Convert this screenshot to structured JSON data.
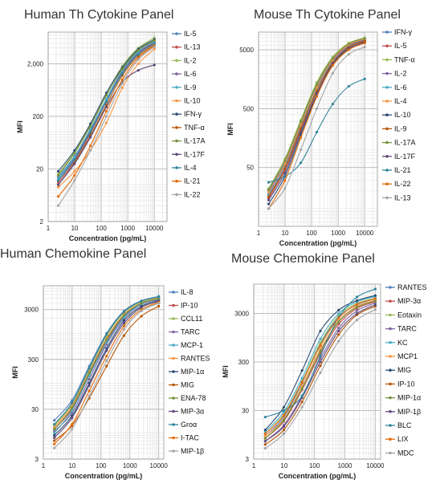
{
  "chart_data": [
    {
      "type": "line",
      "title": "Human Th Cytokine Panel",
      "xlabel": "Concentration (pg/mL)",
      "ylabel": "MFI",
      "xscale": "log",
      "yscale": "log",
      "xlim": [
        1,
        30000
      ],
      "ylim": [
        2,
        8000
      ],
      "xticks": [
        1,
        10,
        100,
        1000,
        10000
      ],
      "xtick_labels": [
        "1",
        "10",
        "100",
        "1000",
        "10000"
      ],
      "yticks": [
        2,
        20,
        200,
        2000
      ],
      "ytick_labels": [
        "2",
        "20",
        "200",
        "2,000"
      ],
      "grid": true,
      "legend": "right",
      "x": [
        2.4,
        9.8,
        39,
        156,
        625,
        2500,
        10000
      ],
      "series": [
        {
          "name": "IL-5",
          "color": "#4f81bd",
          "values": [
            14,
            35,
            110,
            420,
            1450,
            3300,
            5400
          ]
        },
        {
          "name": "IL-13",
          "color": "#c0504d",
          "values": [
            11,
            28,
            95,
            380,
            1350,
            3100,
            5100
          ]
        },
        {
          "name": "IL-2",
          "color": "#9bbb59",
          "values": [
            16,
            42,
            140,
            550,
            1800,
            4000,
            6200
          ]
        },
        {
          "name": "IL-6",
          "color": "#8064a2",
          "values": [
            12,
            32,
            105,
            400,
            1400,
            3200,
            5200
          ]
        },
        {
          "name": "IL-9",
          "color": "#4bacc6",
          "values": [
            13,
            34,
            115,
            430,
            1500,
            3400,
            5300
          ]
        },
        {
          "name": "IL-10",
          "color": "#f79646",
          "values": [
            9,
            18,
            45,
            150,
            700,
            2000,
            3800
          ]
        },
        {
          "name": "IFN-γ",
          "color": "#2c4d75",
          "values": [
            18,
            45,
            145,
            560,
            1700,
            3800,
            5800
          ]
        },
        {
          "name": "TNF-α",
          "color": "#b65708",
          "values": [
            10,
            26,
            85,
            330,
            1200,
            2800,
            4600
          ]
        },
        {
          "name": "IL-17A",
          "color": "#76923c",
          "values": [
            15,
            40,
            130,
            500,
            1600,
            3600,
            5500
          ]
        },
        {
          "name": "IL-17F",
          "color": "#5f497a",
          "values": [
            10,
            25,
            80,
            300,
            900,
            1500,
            1900
          ]
        },
        {
          "name": "IL-4",
          "color": "#31859b",
          "values": [
            12,
            30,
            100,
            380,
            1300,
            3000,
            4800
          ]
        },
        {
          "name": "IL-21",
          "color": "#e46c0a",
          "values": [
            6,
            15,
            55,
            250,
            1000,
            2600,
            4400
          ]
        },
        {
          "name": "IL-22",
          "color": "#a6a6a6",
          "values": [
            4,
            12,
            45,
            200,
            850,
            2400,
            4200
          ]
        }
      ]
    },
    {
      "type": "line",
      "title": "Mouse Th Cytokine Panel",
      "xlabel": "Concentration (pg/mL)",
      "ylabel": "MFI",
      "xscale": "log",
      "yscale": "log",
      "xlim": [
        1,
        30000
      ],
      "ylim": [
        5,
        10000
      ],
      "xticks": [
        1,
        10,
        100,
        1000,
        10000
      ],
      "xtick_labels": [
        "1",
        "10",
        "100",
        "1000",
        "10000"
      ],
      "yticks": [
        50,
        500,
        5000
      ],
      "ytick_labels": [
        "50",
        "500",
        "5000"
      ],
      "grid": true,
      "legend": "right",
      "x": [
        2.4,
        9.8,
        39,
        156,
        625,
        2500,
        10000
      ],
      "series": [
        {
          "name": "IFN-γ",
          "color": "#4f81bd",
          "values": [
            20,
            60,
            280,
            1200,
            3500,
            6000,
            7500
          ]
        },
        {
          "name": "IL-5",
          "color": "#c0504d",
          "values": [
            15,
            45,
            220,
            1000,
            3200,
            5800,
            7200
          ]
        },
        {
          "name": "TNF-α",
          "color": "#9bbb59",
          "values": [
            22,
            70,
            320,
            1400,
            3800,
            6500,
            8000
          ]
        },
        {
          "name": "IL-2",
          "color": "#8064a2",
          "values": [
            18,
            55,
            260,
            1100,
            3300,
            5900,
            7300
          ]
        },
        {
          "name": "IL-6",
          "color": "#4bacc6",
          "values": [
            17,
            50,
            240,
            1050,
            3100,
            5600,
            7000
          ]
        },
        {
          "name": "IL-4",
          "color": "#f79646",
          "values": [
            19,
            58,
            270,
            1150,
            3400,
            6100,
            7600
          ]
        },
        {
          "name": "IL-10",
          "color": "#2c4d75",
          "values": [
            12,
            35,
            180,
            850,
            2800,
            5200,
            6800
          ]
        },
        {
          "name": "IL-9",
          "color": "#b65708",
          "values": [
            16,
            48,
            230,
            1000,
            3000,
            5500,
            7000
          ]
        },
        {
          "name": "IL-17A",
          "color": "#76923c",
          "values": [
            21,
            65,
            300,
            1300,
            3600,
            6300,
            7800
          ]
        },
        {
          "name": "IL-17F",
          "color": "#5f497a",
          "values": [
            14,
            40,
            200,
            900,
            2900,
            5300,
            6600
          ]
        },
        {
          "name": "IL-21",
          "color": "#31859b",
          "values": [
            28,
            35,
            60,
            200,
            600,
            1200,
            1600
          ]
        },
        {
          "name": "IL-22",
          "color": "#e46c0a",
          "values": [
            10,
            30,
            160,
            800,
            2700,
            5000,
            6500
          ]
        },
        {
          "name": "IL-13",
          "color": "#a6a6a6",
          "values": [
            10,
            22,
            100,
            500,
            2000,
            4200,
            5600
          ]
        }
      ]
    },
    {
      "type": "line",
      "title": "Human Chemokine Panel",
      "xlabel": "Concentration (pg/mL)",
      "ylabel": "MFI",
      "xscale": "log",
      "yscale": "log",
      "xlim": [
        1,
        15000
      ],
      "ylim": [
        3,
        9000
      ],
      "xticks": [
        1,
        10,
        100,
        1000,
        10000
      ],
      "xtick_labels": [
        "1",
        "10",
        "100",
        "1000",
        "10000"
      ],
      "yticks": [
        3,
        30,
        300,
        3000
      ],
      "ytick_labels": [
        "3",
        "30",
        "300",
        "3000"
      ],
      "grid": true,
      "legend": "right",
      "x": [
        2.4,
        9.8,
        39,
        156,
        625,
        2500,
        10000
      ],
      "series": [
        {
          "name": "IL-8",
          "color": "#4f81bd",
          "values": [
            18,
            45,
            220,
            1000,
            2800,
            4500,
            5500
          ]
        },
        {
          "name": "IP-10",
          "color": "#c0504d",
          "values": [
            12,
            30,
            150,
            700,
            2200,
            4000,
            5000
          ]
        },
        {
          "name": "CCL11",
          "color": "#9bbb59",
          "values": [
            14,
            38,
            190,
            900,
            2600,
            4300,
            5300
          ]
        },
        {
          "name": "TARC",
          "color": "#8064a2",
          "values": [
            11,
            25,
            120,
            600,
            2000,
            3800,
            4800
          ]
        },
        {
          "name": "MCP-1",
          "color": "#4bacc6",
          "values": [
            10,
            28,
            140,
            650,
            2100,
            3900,
            4900
          ]
        },
        {
          "name": "RANTES",
          "color": "#f79646",
          "values": [
            13,
            35,
            170,
            800,
            2400,
            4100,
            5100
          ]
        },
        {
          "name": "MIP-1α",
          "color": "#2c4d75",
          "values": [
            9,
            22,
            100,
            500,
            1800,
            3500,
            4600
          ]
        },
        {
          "name": "MIG",
          "color": "#b65708",
          "values": [
            7,
            14,
            50,
            220,
            900,
            2200,
            3500
          ]
        },
        {
          "name": "ENA-78",
          "color": "#76923c",
          "values": [
            12,
            32,
            160,
            750,
            2300,
            4000,
            5000
          ]
        },
        {
          "name": "MIP-3α",
          "color": "#5f497a",
          "values": [
            8,
            20,
            90,
            450,
            1600,
            3300,
            4400
          ]
        },
        {
          "name": "Groα",
          "color": "#31859b",
          "values": [
            15,
            40,
            200,
            950,
            2700,
            4400,
            5400
          ]
        },
        {
          "name": "I-TAC",
          "color": "#e46c0a",
          "values": [
            6,
            15,
            70,
            350,
            1400,
            3000,
            4200
          ]
        },
        {
          "name": "MIP-1β",
          "color": "#a6a6a6",
          "values": [
            5,
            12,
            55,
            280,
            1200,
            2800,
            4000
          ]
        }
      ]
    },
    {
      "type": "line",
      "title": "Mouse Chemokine Panel",
      "xlabel": "Concentration (pg/mL)",
      "ylabel": "MFI",
      "xscale": "log",
      "yscale": "log",
      "xlim": [
        1,
        15000
      ],
      "ylim": [
        3,
        12000
      ],
      "xticks": [
        1,
        10,
        100,
        1000,
        10000
      ],
      "xtick_labels": [
        "1",
        "10",
        "100",
        "1000",
        "10000"
      ],
      "yticks": [
        3,
        30,
        300,
        3000
      ],
      "ytick_labels": [
        "3",
        "30",
        "300",
        "3000"
      ],
      "grid": true,
      "legend": "right",
      "x": [
        2.4,
        9.8,
        39,
        156,
        625,
        2500,
        10000
      ],
      "series": [
        {
          "name": "RANTES",
          "color": "#4f81bd",
          "values": [
            9,
            22,
            110,
            700,
            2500,
            4500,
            6000
          ]
        },
        {
          "name": "MIP-3α",
          "color": "#c0504d",
          "values": [
            8,
            18,
            80,
            450,
            1800,
            3800,
            5200
          ]
        },
        {
          "name": "Eotaxin",
          "color": "#9bbb59",
          "values": [
            10,
            25,
            120,
            750,
            2700,
            4800,
            6200
          ]
        },
        {
          "name": "TARC",
          "color": "#8064a2",
          "values": [
            7,
            15,
            60,
            350,
            1500,
            3400,
            4900
          ]
        },
        {
          "name": "KC",
          "color": "#4bacc6",
          "values": [
            11,
            28,
            140,
            900,
            3000,
            5200,
            6700
          ]
        },
        {
          "name": "MCP1",
          "color": "#f79646",
          "values": [
            9,
            20,
            95,
            550,
            2100,
            4200,
            5600
          ]
        },
        {
          "name": "MIG",
          "color": "#2c4d75",
          "values": [
            12,
            35,
            200,
            1300,
            3500,
            5500,
            7000
          ]
        },
        {
          "name": "IP-10",
          "color": "#b65708",
          "values": [
            6,
            12,
            45,
            250,
            1100,
            2800,
            4200
          ]
        },
        {
          "name": "MIP-1α",
          "color": "#76923c",
          "values": [
            8,
            19,
            85,
            500,
            2000,
            4000,
            5400
          ]
        },
        {
          "name": "MIP-1β",
          "color": "#5f497a",
          "values": [
            7,
            14,
            55,
            300,
            1300,
            3000,
            4500
          ]
        },
        {
          "name": "BLC",
          "color": "#31859b",
          "values": [
            22,
            30,
            60,
            400,
            2500,
            6500,
            9500
          ]
        },
        {
          "name": "LIX",
          "color": "#e46c0a",
          "values": [
            10,
            24,
            115,
            650,
            2400,
            4600,
            6000
          ]
        },
        {
          "name": "MDC",
          "color": "#a6a6a6",
          "values": [
            5,
            10,
            35,
            180,
            800,
            2200,
            3600
          ]
        }
      ]
    }
  ]
}
